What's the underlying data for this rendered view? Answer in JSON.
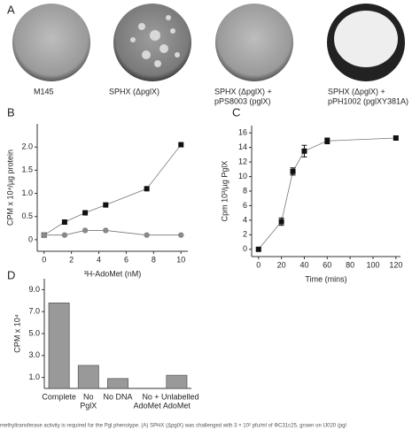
{
  "panel_a": {
    "letter": "A",
    "labels": [
      [
        "M145"
      ],
      [
        "SPHX (ΔpglX)"
      ],
      [
        "SPHX (ΔpglX) +",
        "pPS8003 (pglX)"
      ],
      [
        "SPHX (ΔpglX) +",
        "pPH1002 (pglXY381A)"
      ]
    ]
  },
  "chart_data": [
    {
      "type": "line",
      "panel": "B",
      "x_label": "³H-AdoMet (nM)",
      "y_label": "CPM x 10⁴/µg protein",
      "xlim": [
        -0.5,
        10.5
      ],
      "xticks": [
        0,
        2,
        4,
        6,
        8,
        10
      ],
      "ylim": [
        -0.25,
        2.5
      ],
      "yticks": [
        0,
        0.5,
        {
          "value": 1,
          "label": "1.0"
        },
        1.5,
        {
          "value": 2,
          "label": "2.0"
        }
      ],
      "series": [
        {
          "color": "#111111",
          "marker": "square",
          "x": [
            0,
            1.5,
            3,
            4.5,
            7.5,
            10
          ],
          "values": [
            0.1,
            0.38,
            0.58,
            0.75,
            1.1,
            2.05
          ]
        },
        {
          "color": "#888888",
          "marker": "circle",
          "x": [
            0,
            1.5,
            3,
            4.5,
            7.5,
            10
          ],
          "values": [
            0.1,
            0.1,
            0.2,
            0.2,
            0.1,
            0.1
          ]
        }
      ]
    },
    {
      "type": "line",
      "panel": "C",
      "x_label": "Time (mins)",
      "y_label": "Cpm 10³/µg PglX",
      "xlim": [
        -6,
        124
      ],
      "xticks": [
        0,
        20,
        40,
        60,
        80,
        100,
        120
      ],
      "ylim": [
        -1,
        17
      ],
      "yticks": [
        0,
        2,
        4,
        6,
        8,
        10,
        12,
        14,
        16
      ],
      "series": [
        {
          "color": "#111111",
          "marker": "square",
          "x": [
            0,
            20,
            30,
            40,
            60,
            120
          ],
          "values": [
            0,
            3.8,
            10.7,
            13.5,
            14.9,
            15.3
          ],
          "errors": [
            0.2,
            0.5,
            0.5,
            0.8,
            0.4,
            0.3
          ]
        }
      ]
    },
    {
      "type": "bar",
      "panel": "D",
      "y_label": "CPM x 10⁴",
      "color": "#999999",
      "categories": [
        [
          "Complete"
        ],
        [
          "No",
          "PglX"
        ],
        [
          "No DNA"
        ],
        [
          "No",
          "AdoMet"
        ],
        [
          "+ Unlabelled",
          "AdoMet"
        ]
      ],
      "values": [
        7.8,
        2.1,
        0.9,
        0,
        1.2
      ],
      "ylim": [
        0,
        10
      ],
      "yticks": [
        {
          "value": 1,
          "label": "1.0"
        },
        {
          "value": 3,
          "label": "3.0"
        },
        {
          "value": 5,
          "label": "5.0"
        },
        {
          "value": 7,
          "label": "7.0"
        },
        {
          "value": 9,
          "label": "9.0"
        }
      ]
    }
  ],
  "caption": "methyltransferase activity is required for the Pgl phenotype. (A) SPHX (ΔpglX) was challenged with 3 × 10² pfu/ml of ΦC31c25, grown on IJ020 (pgl"
}
